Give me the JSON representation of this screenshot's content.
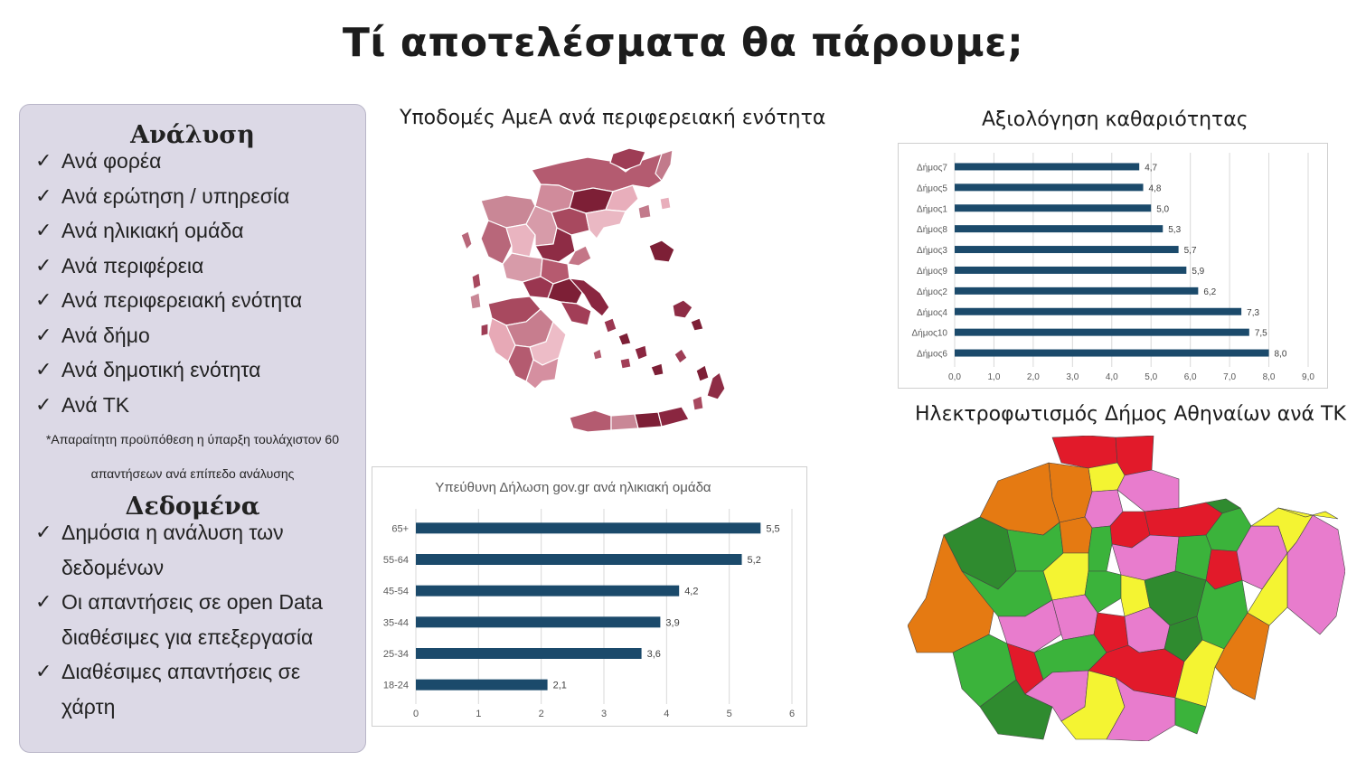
{
  "title": "Τί αποτελέσματα θα πάρουμε;",
  "panel": {
    "analysis_heading": "Ανάλυση",
    "analysis_items": [
      "Ανά φορέα",
      "Ανά ερώτηση / υπηρεσία",
      "Ανά ηλικιακή ομάδα",
      "Ανά περιφέρεια",
      "Ανά περιφερειακή ενότητα",
      "Ανά δήμο",
      "Ανά δημοτική ενότητα",
      "Ανά ΤΚ"
    ],
    "note_line1": "*Απαραίτητη προϋπόθεση η ύπαρξη τουλάχιστον 60",
    "note_line2": "απαντήσεων ανά επίπεδο ανάλυσης",
    "data_heading": "Δεδομένα",
    "data_items": [
      [
        "Δημόσια η ανάλυση των",
        "δεδομένων"
      ],
      [
        "Οι απαντήσεις σε open Data",
        "διαθέσιμες για επεξεργασία"
      ],
      [
        "Διαθέσιμες απαντήσεις σε",
        "χάρτη"
      ]
    ],
    "check_glyph": "✓"
  },
  "map_greece": {
    "caption": "Υποδομές ΑμεΑ ανά περιφερειακή ενότητα"
  },
  "map_athens": {
    "caption": "Ηλεκτροφωτισμός Δήμος Αθηναίων ανά ΤΚ"
  },
  "colors": {
    "bar": "#1b4a6b",
    "map_dark": "#7d1f36",
    "map_light": "#e8aebb"
  },
  "chart_data": [
    {
      "type": "bar",
      "orientation": "horizontal",
      "title": "Υπεύθυνη Δήλωση gov.gr ανά ηλικιακή ομάδα",
      "categories": [
        "65+",
        "55-64",
        "45-54",
        "35-44",
        "25-34",
        "18-24"
      ],
      "values": [
        5.5,
        5.2,
        4.2,
        3.9,
        3.6,
        2.1
      ],
      "value_labels": [
        "5,5",
        "5,2",
        "4,2",
        "3,9",
        "3,6",
        "2,1"
      ],
      "xlim": [
        0,
        6
      ],
      "xticks": [
        "0",
        "1",
        "2",
        "3",
        "4",
        "5",
        "6"
      ],
      "grid": true
    },
    {
      "type": "bar",
      "orientation": "horizontal",
      "title": "Αξιολόγηση καθαριότητας",
      "categories": [
        "Δήμος7",
        "Δήμος5",
        "Δήμος1",
        "Δήμος8",
        "Δήμος3",
        "Δήμος9",
        "Δήμος2",
        "Δήμος4",
        "Δήμος10",
        "Δήμος6"
      ],
      "values": [
        4.7,
        4.8,
        5.0,
        5.3,
        5.7,
        5.9,
        6.2,
        7.3,
        7.5,
        8.0
      ],
      "value_labels": [
        "4,7",
        "4,8",
        "5,0",
        "5,3",
        "5,7",
        "5,9",
        "6,2",
        "7,3",
        "7,5",
        "8,0"
      ],
      "xlim": [
        0,
        9
      ],
      "xticks": [
        "0,0",
        "1,0",
        "2,0",
        "3,0",
        "4,0",
        "5,0",
        "6,0",
        "7,0",
        "8,0",
        "9,0"
      ],
      "grid": true
    }
  ]
}
